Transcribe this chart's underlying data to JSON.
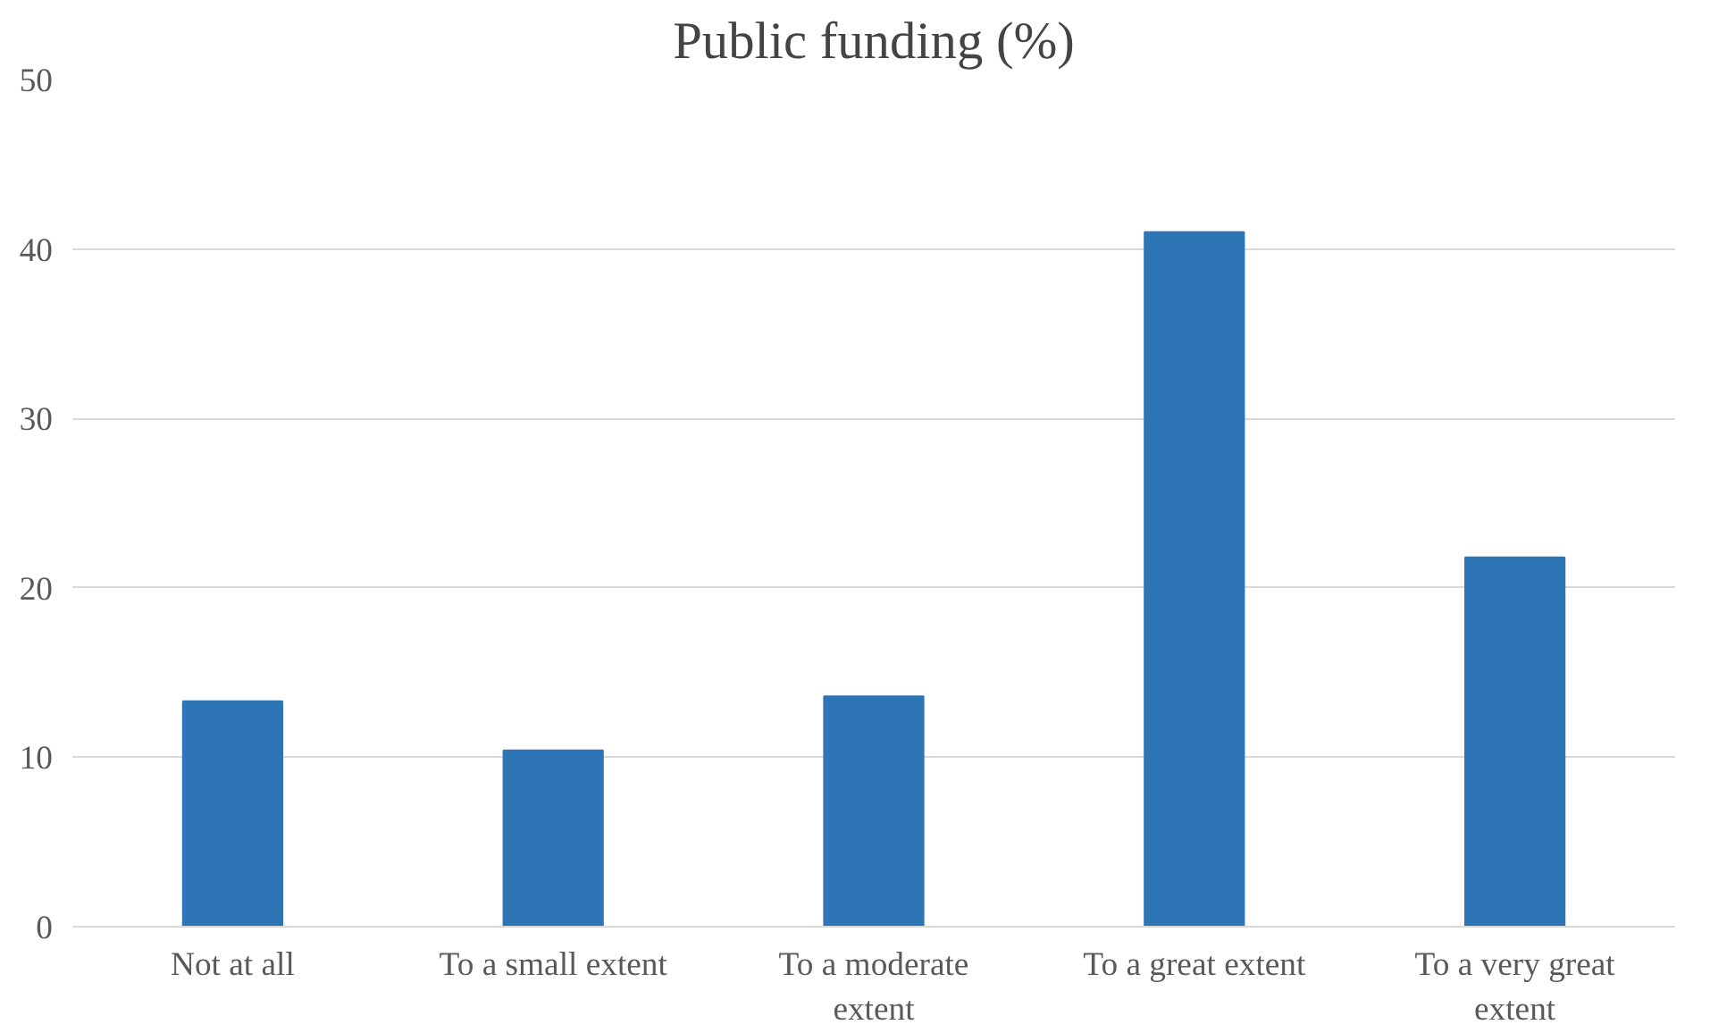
{
  "chart_data": {
    "type": "bar",
    "title": "Public funding (%)",
    "categories": [
      "Not at all",
      "To a small extent",
      "To a moderate extent",
      "To a great extent",
      "To a very great extent"
    ],
    "values": [
      13.3,
      10.4,
      13.6,
      41.0,
      21.8
    ],
    "color": "#2e75b6",
    "ylim": [
      0,
      50
    ],
    "yticks": [
      0,
      10,
      20,
      30,
      40,
      50
    ],
    "grid": "y"
  }
}
